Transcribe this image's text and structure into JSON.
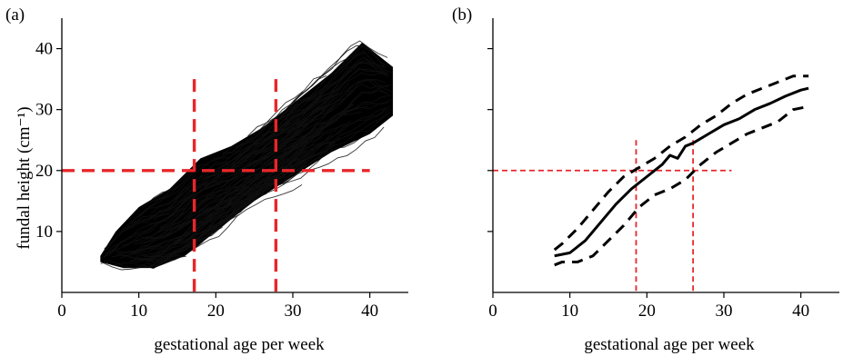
{
  "chart_data": [
    {
      "type": "line",
      "panel_label": "(a)",
      "xlabel": "gestational age per week",
      "ylabel": "fundal height (cm⁻¹)",
      "xlim": [
        0,
        45
      ],
      "ylim": [
        0,
        45
      ],
      "xticks": [
        0,
        10,
        20,
        30,
        40
      ],
      "yticks": [
        10,
        20,
        30,
        40
      ],
      "grid": false,
      "description_series": "dense cloud of individual fundal height trajectories",
      "envelope_lower": [
        [
          5,
          5
        ],
        [
          8,
          4
        ],
        [
          12,
          4
        ],
        [
          16,
          6
        ],
        [
          20,
          10
        ],
        [
          25,
          15
        ],
        [
          30,
          19
        ],
        [
          35,
          23
        ],
        [
          40,
          26
        ],
        [
          43,
          29
        ]
      ],
      "envelope_upper": [
        [
          5,
          6
        ],
        [
          7,
          10
        ],
        [
          10,
          14
        ],
        [
          14,
          17
        ],
        [
          18,
          22
        ],
        [
          22,
          24
        ],
        [
          26,
          27
        ],
        [
          30,
          31
        ],
        [
          35,
          36
        ],
        [
          39,
          41
        ],
        [
          43,
          37
        ]
      ],
      "reference_lines": [
        {
          "orientation": "horizontal",
          "value": 20,
          "color": "#e8262a",
          "style": "dashed"
        },
        {
          "orientation": "vertical",
          "value": 17.2,
          "color": "#e8262a",
          "style": "dashed"
        },
        {
          "orientation": "vertical",
          "value": 27.8,
          "color": "#e8262a",
          "style": "dashed"
        }
      ]
    },
    {
      "type": "line",
      "panel_label": "(b)",
      "xlabel": "gestational age per week",
      "ylabel": "",
      "xlim": [
        0,
        45
      ],
      "ylim": [
        0,
        45
      ],
      "xticks": [
        0,
        10,
        20,
        30,
        40
      ],
      "yticks": [
        10,
        20,
        30,
        40
      ],
      "show_ytick_labels": false,
      "grid": false,
      "series": [
        {
          "style": "solid",
          "color": "#000000",
          "x": [
            8,
            10,
            12,
            14,
            16,
            18,
            20,
            22,
            23,
            24,
            25,
            26,
            28,
            30,
            32,
            34,
            36,
            38,
            40,
            41
          ],
          "y": [
            6,
            6.5,
            8.5,
            11.5,
            14.5,
            17,
            19,
            21,
            22.5,
            22,
            24,
            24.5,
            26,
            27.5,
            28.5,
            30,
            31,
            32.2,
            33.2,
            33.5
          ]
        },
        {
          "style": "dashed",
          "color": "#000000",
          "x": [
            8,
            9,
            11,
            13,
            15,
            17,
            19,
            21,
            23,
            25,
            27,
            29,
            31,
            33,
            35,
            37,
            39,
            41
          ],
          "y": [
            7,
            8,
            10.5,
            13.5,
            16.5,
            19,
            20.5,
            22,
            24,
            25.5,
            27.5,
            29,
            31,
            32.5,
            33.5,
            34.5,
            35.5,
            35.5
          ]
        },
        {
          "style": "dashed",
          "color": "#000000",
          "x": [
            8,
            9,
            11,
            13,
            15,
            17,
            19,
            21,
            23,
            25,
            27,
            29,
            31,
            33,
            35,
            37,
            39,
            41
          ],
          "y": [
            4.5,
            5,
            5,
            6,
            8.5,
            11,
            14,
            16,
            17,
            18.5,
            21,
            23,
            24.5,
            26,
            27,
            28,
            30,
            30.5
          ]
        }
      ],
      "reference_lines": [
        {
          "orientation": "horizontal",
          "value": 20,
          "color": "#e8262a",
          "style": "dotted"
        },
        {
          "orientation": "vertical",
          "value": 18.6,
          "color": "#e8262a",
          "style": "dotted"
        },
        {
          "orientation": "vertical",
          "value": 26,
          "color": "#e8262a",
          "style": "dotted"
        }
      ]
    }
  ]
}
